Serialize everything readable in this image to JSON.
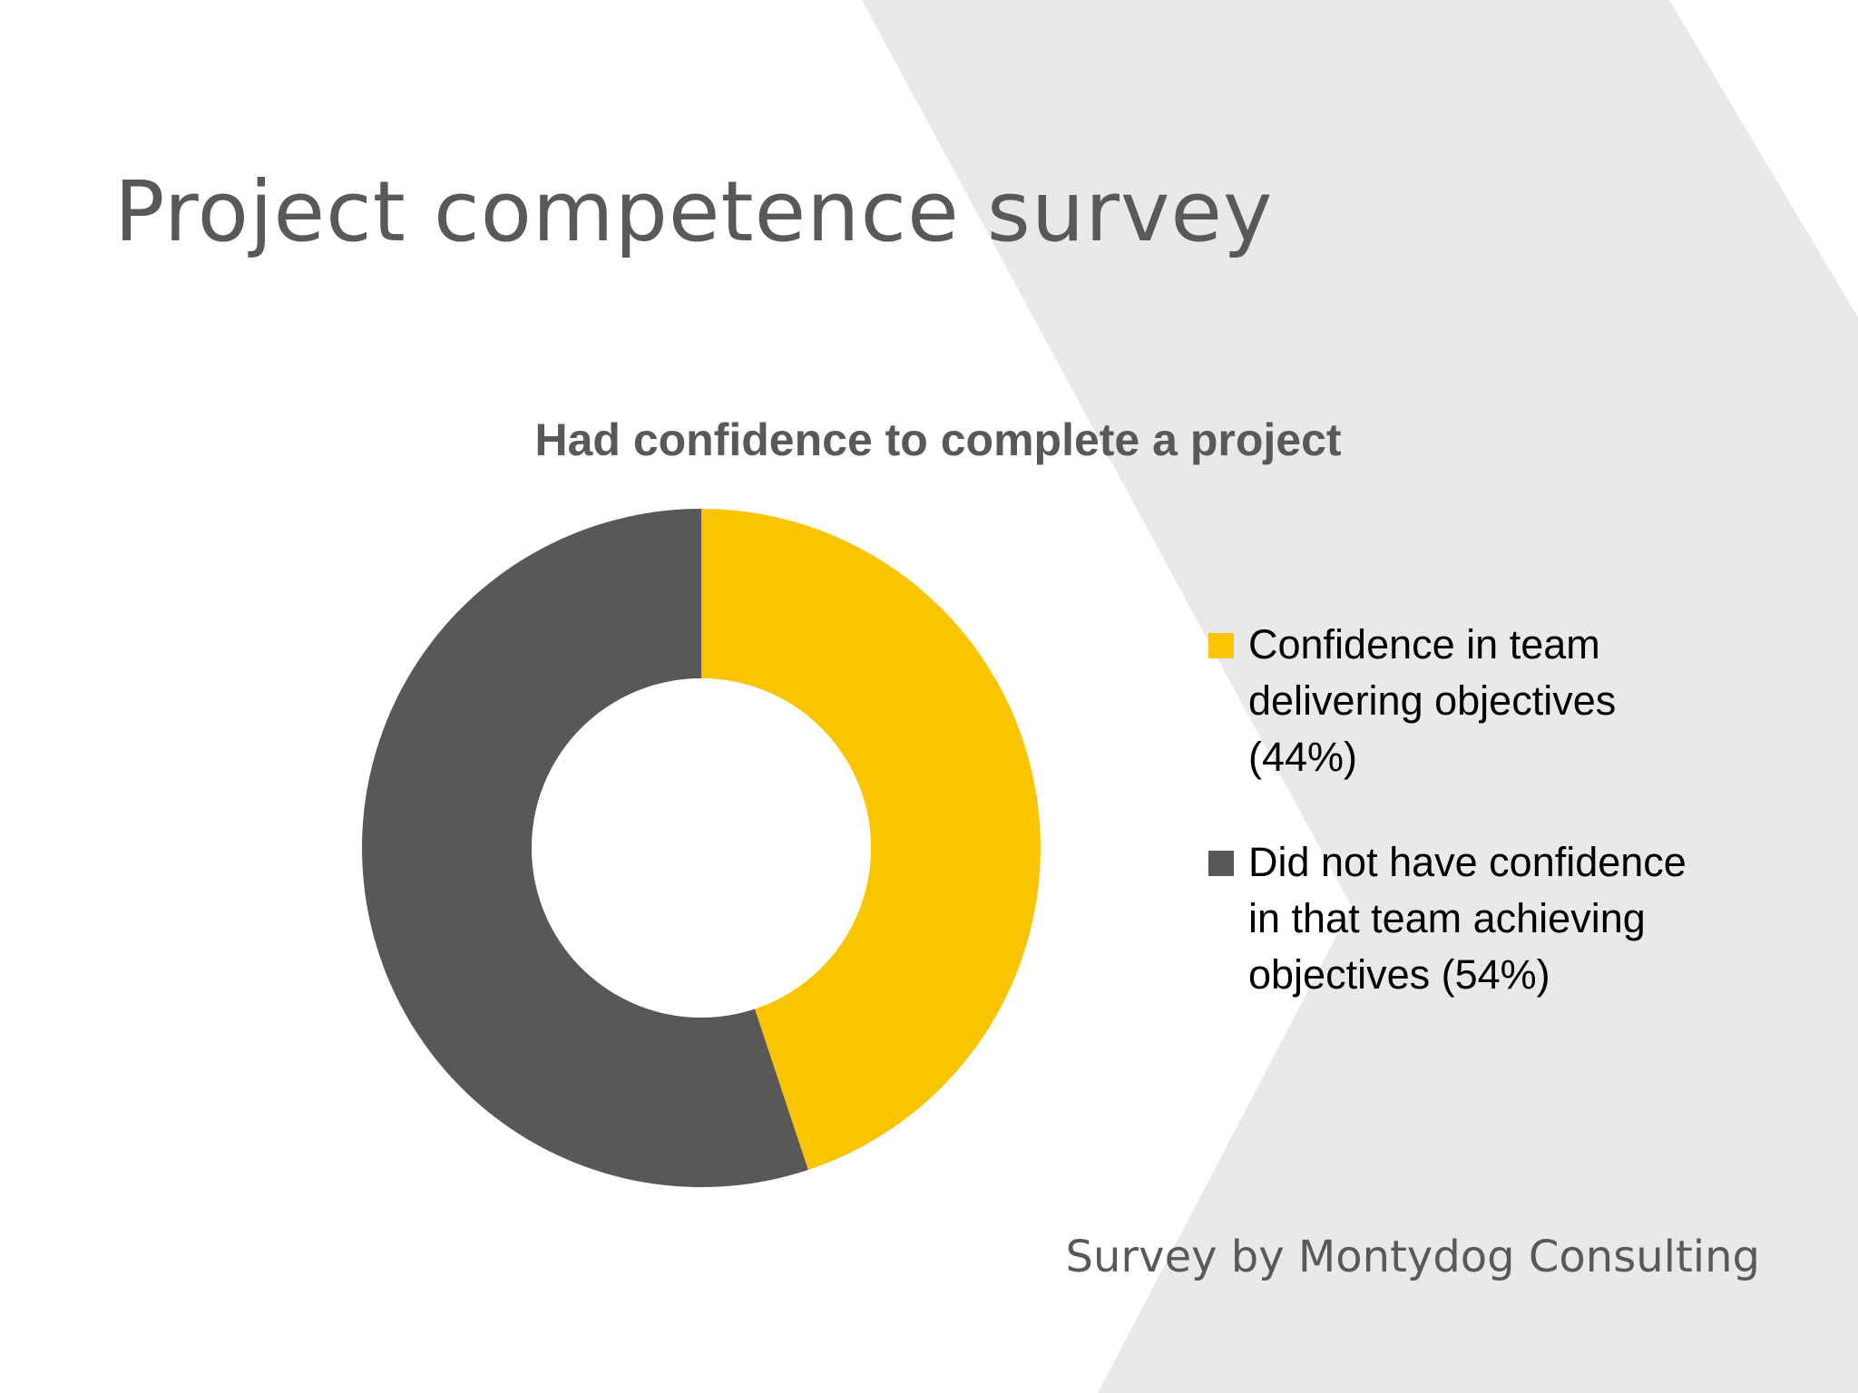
{
  "slide": {
    "title": "Project competence survey",
    "footer": "Survey by Montydog Consulting",
    "colors": {
      "background": "#ffffff",
      "chevron": "#e9e8ea",
      "text_gray": "#595959"
    }
  },
  "chart_data": {
    "type": "pie",
    "style": "donut",
    "title": "Had confidence to complete a project",
    "legend_placement": "right",
    "slices": [
      {
        "label": "Confidence in team delivering objectives (44%)",
        "value": 44,
        "color": "#fac400"
      },
      {
        "label": "Did not have confidence in that team achieving objectives (54%)",
        "value": 54,
        "color": "#585858"
      }
    ]
  }
}
